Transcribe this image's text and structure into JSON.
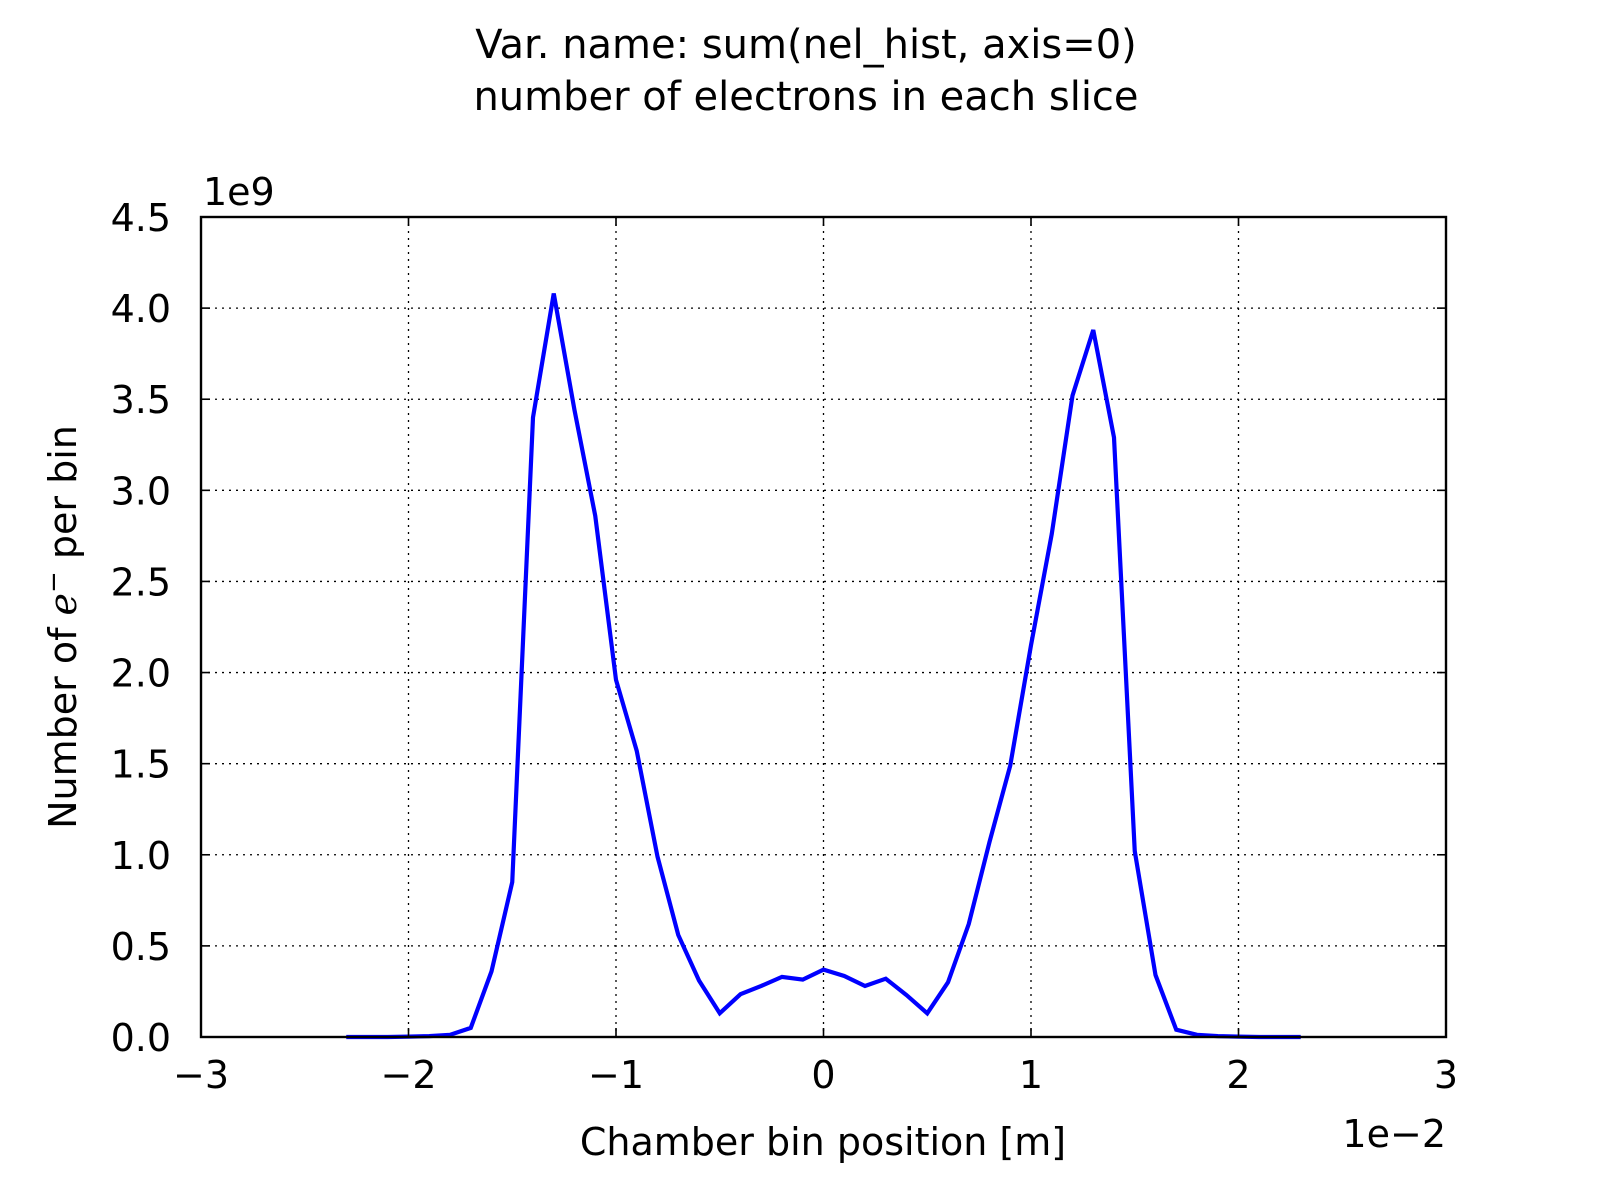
{
  "chart_data": {
    "type": "line",
    "title": [
      "Var. name: sum(nel_hist, axis=0)",
      "number of electrons in each slice"
    ],
    "xlabel": "Chamber bin position [m]",
    "ylabel_parts": [
      "Number of ",
      "e",
      "−",
      " per bin"
    ],
    "x_offset_label": "1e−2",
    "y_offset_label": "1e9",
    "xlim": [
      -3,
      3
    ],
    "ylim": [
      0,
      4.5
    ],
    "x_ticks": [
      -3,
      -2,
      -1,
      0,
      1,
      2,
      3
    ],
    "x_tick_labels": [
      "−3",
      "−2",
      "−1",
      "0",
      "1",
      "2",
      "3"
    ],
    "y_ticks": [
      0,
      0.5,
      1,
      1.5,
      2,
      2.5,
      3,
      3.5,
      4,
      4.5
    ],
    "y_tick_labels": [
      "0.0",
      "0.5",
      "1.0",
      "1.5",
      "2.0",
      "2.5",
      "3.0",
      "3.5",
      "4.0",
      "4.5"
    ],
    "grid": true,
    "series": [
      {
        "color": "#0000ff",
        "x": [
          -2.3,
          -2.2,
          -2.1,
          -2.0,
          -1.9,
          -1.8,
          -1.7,
          -1.6,
          -1.5,
          -1.4,
          -1.3,
          -1.2,
          -1.1,
          -1.0,
          -0.9,
          -0.8,
          -0.7,
          -0.6,
          -0.5,
          -0.4,
          -0.3,
          -0.2,
          -0.1,
          0.0,
          0.1,
          0.2,
          0.3,
          0.4,
          0.5,
          0.6,
          0.7,
          0.8,
          0.9,
          1.0,
          1.1,
          1.2,
          1.3,
          1.4,
          1.5,
          1.6,
          1.7,
          1.8,
          1.9,
          2.0,
          2.1,
          2.2,
          2.3
        ],
        "y": [
          0.0,
          0.0,
          0.0,
          0.002,
          0.005,
          0.012,
          0.05,
          0.36,
          0.85,
          3.4,
          4.08,
          3.44,
          2.86,
          1.96,
          1.57,
          0.99,
          0.56,
          0.31,
          0.13,
          0.235,
          0.28,
          0.33,
          0.315,
          0.37,
          0.335,
          0.28,
          0.32,
          0.23,
          0.13,
          0.3,
          0.62,
          1.07,
          1.49,
          2.15,
          2.76,
          3.52,
          3.88,
          3.29,
          1.02,
          0.34,
          0.04,
          0.012,
          0.005,
          0.002,
          0.0,
          0.0,
          0.0
        ]
      }
    ]
  }
}
